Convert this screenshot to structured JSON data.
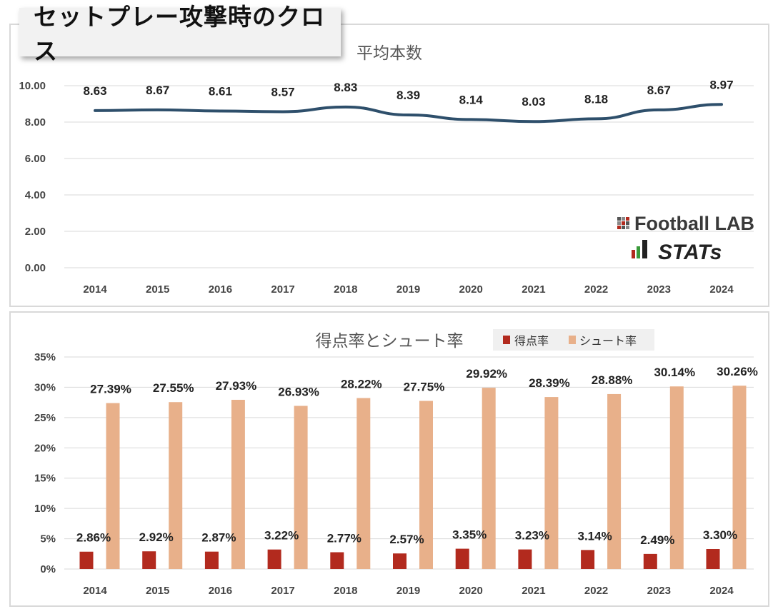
{
  "header": {
    "title": "セットプレー攻撃時のクロス"
  },
  "logo": {
    "brand": "Football LAB",
    "sub": "STATs"
  },
  "chart_data": [
    {
      "type": "line",
      "title": "平均本数",
      "categories": [
        "2014",
        "2015",
        "2016",
        "2017",
        "2018",
        "2019",
        "2020",
        "2021",
        "2022",
        "2023",
        "2024"
      ],
      "series": [
        {
          "values": [
            8.63,
            8.67,
            8.61,
            8.57,
            8.83,
            8.39,
            8.14,
            8.03,
            8.18,
            8.67,
            8.97
          ],
          "color": "#2e4f6b"
        }
      ],
      "labels": [
        "8.63",
        "8.67",
        "8.61",
        "8.57",
        "8.83",
        "8.39",
        "8.14",
        "8.03",
        "8.18",
        "8.67",
        "8.97"
      ],
      "yticks": [
        "0.00",
        "2.00",
        "4.00",
        "6.00",
        "8.00",
        "10.00"
      ],
      "ylim": [
        0,
        10
      ],
      "grid": true
    },
    {
      "type": "bar",
      "title": "得点率とシュート率",
      "categories": [
        "2014",
        "2015",
        "2016",
        "2017",
        "2018",
        "2019",
        "2020",
        "2021",
        "2022",
        "2023",
        "2024"
      ],
      "series": [
        {
          "name": "得点率",
          "color": "#b22a1e",
          "values": [
            2.86,
            2.92,
            2.87,
            3.22,
            2.77,
            2.57,
            3.35,
            3.23,
            3.14,
            2.49,
            3.3
          ],
          "labels": [
            "2.86%",
            "2.92%",
            "2.87%",
            "3.22%",
            "2.77%",
            "2.57%",
            "3.35%",
            "3.23%",
            "3.14%",
            "2.49%",
            "3.30%"
          ]
        },
        {
          "name": "シュート率",
          "color": "#e8b08a",
          "values": [
            27.39,
            27.55,
            27.93,
            26.93,
            28.22,
            27.75,
            29.92,
            28.39,
            28.88,
            30.14,
            30.26
          ],
          "labels": [
            "27.39%",
            "27.55%",
            "27.93%",
            "26.93%",
            "28.22%",
            "27.75%",
            "29.92%",
            "28.39%",
            "28.88%",
            "30.14%",
            "30.26%"
          ]
        }
      ],
      "yticks": [
        "0%",
        "5%",
        "10%",
        "15%",
        "20%",
        "25%",
        "30%",
        "35%"
      ],
      "ylim": [
        0,
        35
      ],
      "legend": "top-right",
      "grid": true
    }
  ]
}
